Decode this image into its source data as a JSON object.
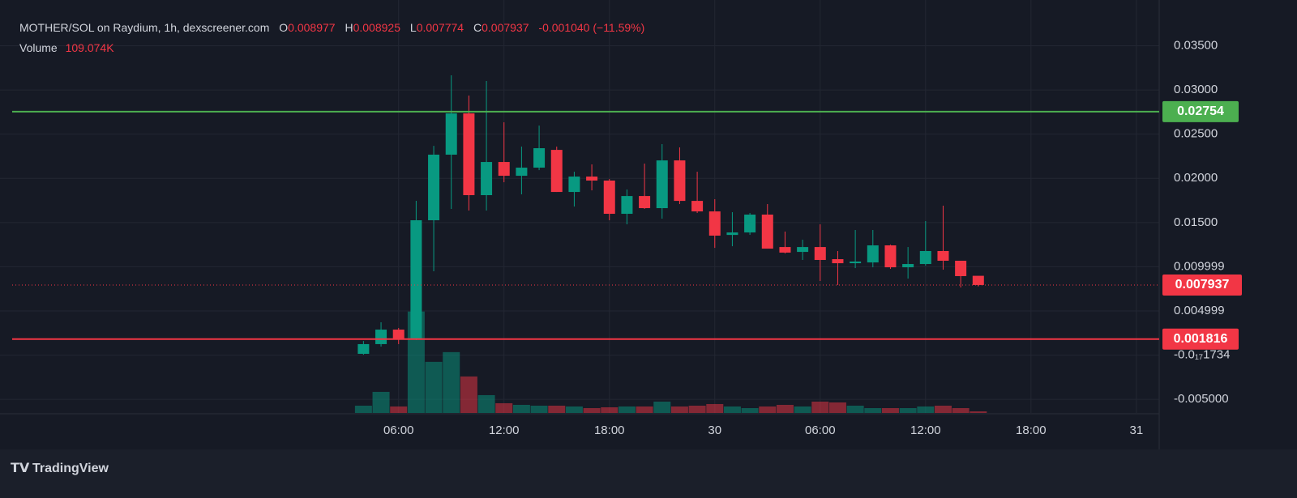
{
  "chart_data": {
    "type": "candlestick",
    "title": "MOTHER/SOL on Raydium, 1h, dexscreener.com",
    "legend": {
      "open": "O",
      "high": "H",
      "low": "L",
      "close": "C",
      "change": "-0.001040 (−11.59%)",
      "volume": "Volume",
      "volume_value": "109.074K"
    },
    "x": [
      4,
      5,
      6,
      7,
      8,
      9,
      10,
      11,
      12,
      13,
      14,
      15,
      16,
      17,
      18,
      19,
      20,
      21,
      22,
      23,
      24,
      25,
      26,
      27,
      28,
      29,
      30,
      31,
      32,
      33,
      34,
      35,
      36,
      37,
      38,
      39
    ],
    "open": [
      0.00015,
      0.00125,
      0.00289,
      0.00189,
      0.01526,
      0.02268,
      0.02735,
      0.0181,
      0.02185,
      0.02029,
      0.02121,
      0.02322,
      0.01846,
      0.0202,
      0.01975,
      0.01599,
      0.018,
      0.01663,
      0.02203,
      0.01745,
      0.01626,
      0.0136,
      0.01388,
      0.0159,
      0.01223,
      0.01168,
      0.01223,
      0.01086,
      0.0104,
      0.01049,
      0.01242,
      0.00994,
      0.01031,
      0.01178,
      0.01068,
      0.008977
    ],
    "high": [
      0.0016,
      0.00372,
      0.00308,
      0.01746,
      0.02368,
      0.03165,
      0.02936,
      0.03101,
      0.02634,
      0.02359,
      0.02597,
      0.02359,
      0.02075,
      0.02158,
      0.01993,
      0.01874,
      0.02167,
      0.02387,
      0.0235,
      0.02075,
      0.01764,
      0.01617,
      0.01608,
      0.01709,
      0.01398,
      0.01306,
      0.0148,
      0.01178,
      0.01416,
      0.01416,
      0.0125,
      0.01223,
      0.01517,
      0.01691,
      0.01068,
      0.008925
    ],
    "low": [
      5e-05,
      0.00097,
      0.00125,
      0.0017,
      0.00949,
      0.01654,
      0.01636,
      0.01636,
      0.01956,
      0.01819,
      0.02093,
      0.01846,
      0.01681,
      0.01864,
      0.01526,
      0.0148,
      0.01654,
      0.01544,
      0.01709,
      0.01608,
      0.01214,
      0.01232,
      0.01361,
      0.01205,
      0.0115,
      0.01077,
      0.00839,
      0.00793,
      0.00985,
      0.00994,
      0.00976,
      0.00866,
      0.01013,
      0.00967,
      0.00766,
      0.007774
    ],
    "close": [
      0.00125,
      0.00289,
      0.00189,
      0.01526,
      0.02268,
      0.02735,
      0.0181,
      0.02185,
      0.02029,
      0.02121,
      0.02341,
      0.01846,
      0.0202,
      0.01975,
      0.01599,
      0.018,
      0.01663,
      0.02203,
      0.01745,
      0.01626,
      0.01352,
      0.01388,
      0.0159,
      0.01205,
      0.0116,
      0.01223,
      0.01077,
      0.0104,
      0.01059,
      0.01242,
      0.00994,
      0.01031,
      0.01178,
      0.01068,
      0.00894,
      0.007937
    ],
    "volume": [
      495000,
      1430000,
      440000,
      6875000,
      3465000,
      4125000,
      2475000,
      1210000,
      660000,
      550000,
      495000,
      495000,
      440000,
      330000,
      385000,
      440000,
      440000,
      770000,
      440000,
      495000,
      605000,
      440000,
      330000,
      440000,
      550000,
      440000,
      770000,
      715000,
      495000,
      330000,
      330000,
      330000,
      440000,
      495000,
      330000,
      109074
    ],
    "colors": {
      "up": "#089981",
      "down": "#f23645"
    },
    "xlim": [
      -16,
      49.3
    ],
    "xticks": [
      {
        "value": 6,
        "label": "06:00"
      },
      {
        "value": 12,
        "label": "12:00"
      },
      {
        "value": 18,
        "label": "18:00"
      },
      {
        "value": 24,
        "label": "30"
      },
      {
        "value": 30,
        "label": "06:00"
      },
      {
        "value": 36,
        "label": "12:00"
      },
      {
        "value": 42,
        "label": "18:00"
      },
      {
        "value": 48,
        "label": "31"
      }
    ],
    "ylim": [
      -0.00654,
      0.0388
    ],
    "yticks": [
      {
        "value": 0.035,
        "label": "0.03500"
      },
      {
        "value": 0.03,
        "label": "0.03000"
      },
      {
        "value": 0.025,
        "label": "0.02500"
      },
      {
        "value": 0.02,
        "label": "0.02000"
      },
      {
        "value": 0.015,
        "label": "0.01500"
      },
      0.009999,
      0.004999,
      {
        "value": -1.734e-18,
        "label": "-0.0₁₇1734"
      },
      {
        "value": -0.005,
        "label": "-0.005000"
      }
    ],
    "volume_ylim": [
      0,
      9000000
    ],
    "lines": [
      {
        "value": 0.02754,
        "color": "#4caf50"
      },
      {
        "value": 0.001816,
        "color": "#f23645"
      }
    ],
    "grid": true
  },
  "footer": {
    "brand": "TradingView"
  }
}
